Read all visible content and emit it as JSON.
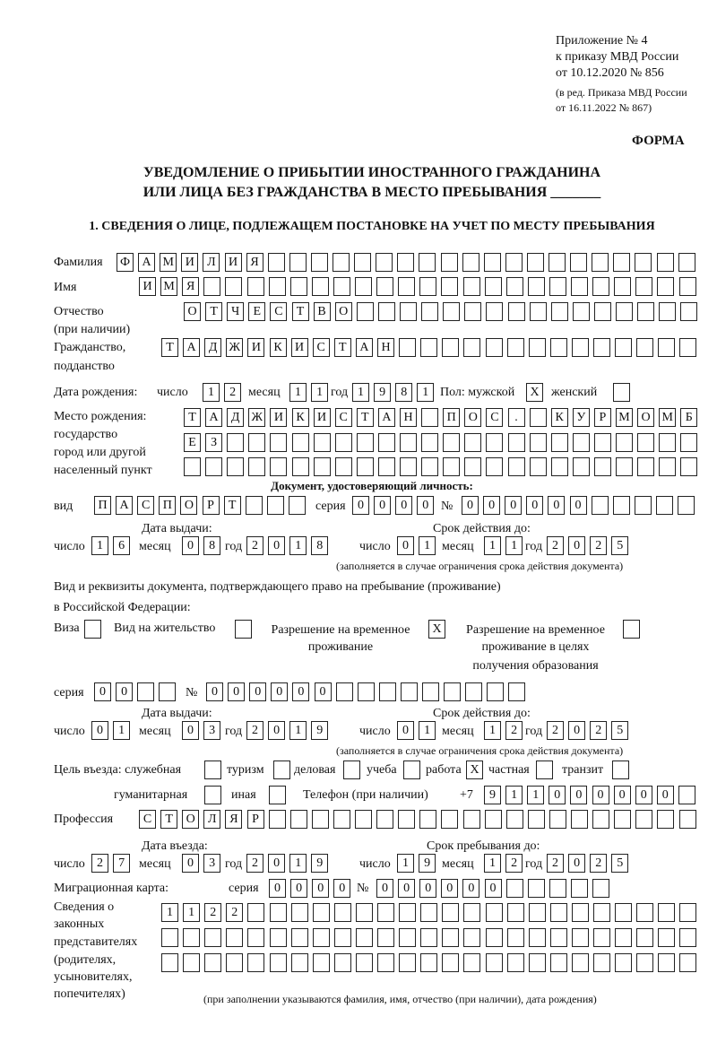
{
  "header": {
    "appendix": "Приложение № 4",
    "order_line1": "к приказу МВД России",
    "order_line2": "от 10.12.2020 № 856",
    "amend_line1": "(в ред. Приказа МВД России",
    "amend_line2": "от 16.11.2022 № 867)",
    "form_label": "ФОРМА"
  },
  "title": {
    "line1": "УВЕДОМЛЕНИЕ О ПРИБЫТИИ ИНОСТРАННОГО ГРАЖДАНИНА",
    "line2": "ИЛИ ЛИЦА БЕЗ ГРАЖДАНСТВА В МЕСТО ПРЕБЫВАНИЯ _______"
  },
  "section1": {
    "heading": "1. СВЕДЕНИЯ О ЛИЦЕ, ПОДЛЕЖАЩЕМ ПОСТАНОВКЕ НА УЧЕТ ПО МЕСТУ ПРЕБЫВАНИЯ"
  },
  "labels": {
    "surname": "Фамилия",
    "name": "Имя",
    "patronymic1": "Отчество",
    "patronymic2": "(при наличии)",
    "citizenship1": "Гражданство,",
    "citizenship2": "подданство",
    "birth_date": "Дата рождения:",
    "day": "число",
    "month": "месяц",
    "year": "год",
    "sex": "Пол: мужской",
    "female": "женский",
    "birthplace1": "Место рождения:",
    "birthplace2": "государство",
    "birthplace3": "город или другой",
    "birthplace4": "населенный пункт",
    "id_doc": "Документ, удостоверяющий личность:",
    "kind": "вид",
    "series": "серия",
    "number": "№",
    "issue_date": "Дата выдачи:",
    "valid_until": "Срок действия до:",
    "valid_note": "(заполняется в случае ограничения срока действия документа)",
    "right_doc1": "Вид и реквизиты документа, подтверждающего право на пребывание (проживание)",
    "right_doc2": "в Российской Федерации:",
    "visa": "Виза",
    "residence_permit": "Вид на жительство",
    "temp_permit1": "Разрешение на временное",
    "temp_permit2": "проживание",
    "temp_edu1": "Разрешение на временное",
    "temp_edu2": "проживание в целях",
    "temp_edu3": "получения образования",
    "purpose": "Цель въезда: служебная",
    "tourism": "туризм",
    "business": "деловая",
    "study": "учеба",
    "work": "работа",
    "private": "частная",
    "transit": "транзит",
    "humanitarian": "гуманитарная",
    "other": "иная",
    "phone": "Телефон (при наличии)",
    "phone_prefix": "+7",
    "profession": "Профессия",
    "entry_date": "Дата въезда:",
    "stay_until": "Срок пребывания до:",
    "migration_card": "Миграционная карта:",
    "reps1": "Сведения о",
    "reps2": "законных",
    "reps3": "представителях",
    "reps4": "(родителях,",
    "reps5": "усыновителях,",
    "reps6": "попечителях)",
    "reps_note": "(при заполнении указываются фамилия, имя, отчество (при наличии), дата рождения)"
  },
  "person": {
    "surname": "ФАМИЛИЯ",
    "name": "ИМЯ",
    "patronymic": "ОТЧЕСТВО",
    "citizenship": "ТАДЖИКИСТАН",
    "birth_day": "12",
    "birth_month": "11",
    "birth_year": "1981",
    "sex_male": "X",
    "sex_female": "",
    "birthplace_line1": "ТАДЖИКИСТАН ПОС. КУРМОМБ",
    "birthplace_line2": "ЕЗ",
    "birthplace_line3": ""
  },
  "id_document": {
    "kind": "ПАСПОРТ",
    "series": "0000",
    "number": "000000",
    "issue_day": "16",
    "issue_month": "08",
    "issue_year": "2018",
    "valid_day": "01",
    "valid_month": "11",
    "valid_year": "2025"
  },
  "right_document": {
    "visa": "",
    "residence_permit": "",
    "temp_permit": "X",
    "temp_edu": "",
    "series": "00",
    "number": "000000",
    "issue_day": "01",
    "issue_month": "03",
    "issue_year": "2019",
    "valid_day": "01",
    "valid_month": "12",
    "valid_year": "2025"
  },
  "purpose": {
    "official": "",
    "tourism": "",
    "business": "",
    "study": "",
    "work": "X",
    "private": "",
    "transit": "",
    "humanitarian": "",
    "other": ""
  },
  "phone": "911000000",
  "profession": "СТОЛЯР",
  "entry": {
    "entry_day": "27",
    "entry_month": "03",
    "entry_year": "2019",
    "stay_day": "19",
    "stay_month": "12",
    "stay_year": "2025"
  },
  "migration_card": {
    "series": "0000",
    "number": "000000"
  },
  "representatives": {
    "line1": "1122",
    "line2": "",
    "line3": ""
  }
}
